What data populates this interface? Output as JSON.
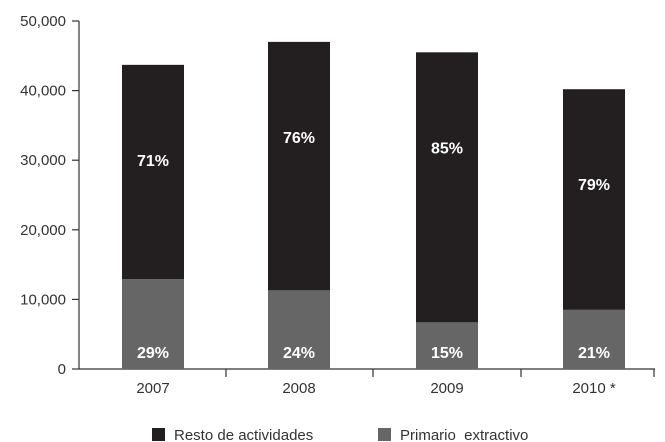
{
  "chart_data": {
    "type": "bar",
    "stacked": true,
    "categories": [
      "2007",
      "2008",
      "2009",
      "2010 *"
    ],
    "series": [
      {
        "name": "Primario  extractivo",
        "color": "#666666",
        "values": [
          12900,
          11300,
          6700,
          8500
        ],
        "labels": [
          "29%",
          "24%",
          "15%",
          "21%"
        ]
      },
      {
        "name": "Resto de actividades",
        "color": "#231f20",
        "values": [
          30800,
          35700,
          38800,
          31700
        ],
        "labels": [
          "71%",
          "76%",
          "85%",
          "79%"
        ]
      }
    ],
    "yticks": [
      "0",
      "10,000",
      "20,000",
      "30,000",
      "40,000",
      "50,000"
    ],
    "ylim": [
      0,
      50000
    ],
    "legend": {
      "position": "bottom",
      "entries": [
        {
          "label": "Resto de actividades",
          "color": "#231f20"
        },
        {
          "label": "Primario  extractivo",
          "color": "#666666"
        }
      ]
    }
  }
}
